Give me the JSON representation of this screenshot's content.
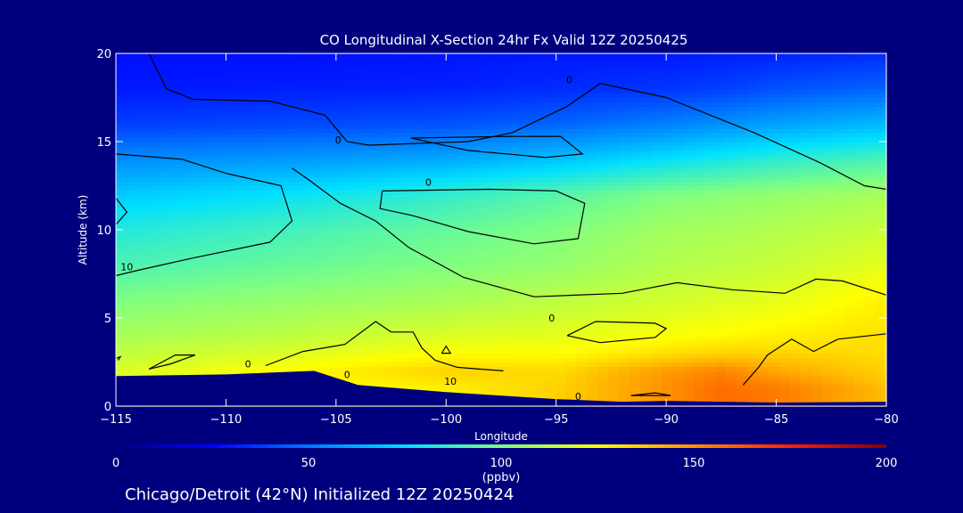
{
  "chart_data": {
    "type": "heatmap",
    "title": "CO Longitudinal X-Section 24hr  Fx Valid 12Z 20250425",
    "xlabel": "Longitude",
    "ylabel": "Altitude (km)",
    "xlim": [
      -115,
      -80
    ],
    "ylim": [
      0,
      20
    ],
    "x_ticks": [
      -115,
      -110,
      -105,
      -100,
      -95,
      -90,
      -85,
      -80
    ],
    "y_ticks": [
      0,
      5,
      10,
      15,
      20
    ],
    "x_tick_labels": [
      "−115",
      "−110",
      "−105",
      "−100",
      "−95",
      "−90",
      "−85",
      "−80"
    ],
    "y_tick_labels": [
      "0",
      "5",
      "10",
      "15",
      "20"
    ],
    "altitude_levels": [
      0,
      1,
      2,
      3,
      4,
      5,
      6,
      8,
      10,
      12,
      14,
      16,
      18,
      20
    ],
    "co_ppbv_by_level": [
      {
        "altitude": 0,
        "longitudes": [
          -115,
          -107.5,
          -100,
          -95,
          -90,
          -87.5,
          -85,
          -80
        ],
        "values": [
          120,
          124,
          128,
          135,
          150,
          158,
          155,
          140
        ]
      },
      {
        "altitude": 1,
        "longitudes": [
          -115,
          -107.5,
          -100,
          -95,
          -90,
          -87.5,
          -85,
          -80
        ],
        "values": [
          120,
          124,
          128,
          135,
          150,
          158,
          155,
          140
        ]
      },
      {
        "altitude": 2,
        "longitudes": [
          -115,
          -107.5,
          -100,
          -95,
          -90,
          -87.5,
          -85,
          -80
        ],
        "values": [
          118,
          125,
          135,
          133,
          148,
          153,
          145,
          135
        ]
      },
      {
        "altitude": 3,
        "longitudes": [
          -115,
          -107.5,
          -100,
          -95,
          -90,
          -87.5,
          -85,
          -80
        ],
        "values": [
          113,
          118,
          125,
          125,
          132,
          135,
          135,
          133
        ]
      },
      {
        "altitude": 4,
        "longitudes": [
          -115,
          -107.5,
          -100,
          -95,
          -90,
          -87.5,
          -85,
          -80
        ],
        "values": [
          108,
          112,
          118,
          120,
          124,
          126,
          128,
          132
        ]
      },
      {
        "altitude": 5,
        "longitudes": [
          -115,
          -107.5,
          -100,
          -95,
          -90,
          -87.5,
          -85,
          -80
        ],
        "values": [
          104,
          108,
          113,
          116,
          120,
          122,
          124,
          130
        ]
      },
      {
        "altitude": 6,
        "longitudes": [
          -115,
          -107.5,
          -100,
          -95,
          -90,
          -87.5,
          -85,
          -80
        ],
        "values": [
          100,
          104,
          108,
          112,
          116,
          118,
          120,
          128
        ]
      },
      {
        "altitude": 8,
        "longitudes": [
          -115,
          -107.5,
          -100,
          -95,
          -90,
          -87.5,
          -85,
          -80
        ],
        "values": [
          90,
          95,
          100,
          104,
          110,
          112,
          114,
          120
        ]
      },
      {
        "altitude": 10,
        "longitudes": [
          -115,
          -107.5,
          -100,
          -95,
          -90,
          -87.5,
          -85,
          -80
        ],
        "values": [
          82,
          88,
          95,
          100,
          107,
          108,
          110,
          114
        ]
      },
      {
        "altitude": 12,
        "longitudes": [
          -115,
          -107.5,
          -100,
          -95,
          -90,
          -87.5,
          -85,
          -80
        ],
        "values": [
          70,
          76,
          85,
          92,
          100,
          102,
          104,
          108
        ]
      },
      {
        "altitude": 14,
        "longitudes": [
          -115,
          -107.5,
          -100,
          -95,
          -90,
          -87.5,
          -85,
          -80
        ],
        "values": [
          55,
          58,
          62,
          68,
          76,
          80,
          84,
          90
        ]
      },
      {
        "altitude": 16,
        "longitudes": [
          -115,
          -107.5,
          -100,
          -95,
          -90,
          -87.5,
          -85,
          -80
        ],
        "values": [
          38,
          40,
          42,
          46,
          52,
          56,
          60,
          66
        ]
      },
      {
        "altitude": 18,
        "longitudes": [
          -115,
          -107.5,
          -100,
          -95,
          -90,
          -87.5,
          -85,
          -80
        ],
        "values": [
          30,
          31,
          32,
          34,
          36,
          38,
          42,
          46
        ]
      },
      {
        "altitude": 20,
        "longitudes": [
          -115,
          -107.5,
          -100,
          -95,
          -90,
          -87.5,
          -85,
          -80
        ],
        "values": [
          28,
          28,
          29,
          30,
          30,
          31,
          32,
          34
        ]
      }
    ],
    "terrain": {
      "longitude": [
        -115,
        -110,
        -106,
        -104,
        -100,
        -95,
        -92,
        -90,
        -85,
        -80
      ],
      "altitude_km": [
        1.7,
        1.8,
        2.0,
        1.2,
        0.8,
        0.4,
        0.25,
        0.3,
        0.2,
        0.25
      ]
    },
    "contour_labels": [
      {
        "text": "0",
        "lon": -94.4,
        "alt": 18.3
      },
      {
        "text": "0",
        "lon": -104.9,
        "alt": 14.9
      },
      {
        "text": "0",
        "lon": -100.8,
        "alt": 12.5
      },
      {
        "text": "10",
        "lon": -114.5,
        "alt": 7.7
      },
      {
        "text": "0",
        "lon": -95.2,
        "alt": 4.8
      },
      {
        "text": "10",
        "lon": -99.8,
        "alt": 1.2
      },
      {
        "text": "0",
        "lon": -109.0,
        "alt": 2.2
      },
      {
        "text": "0",
        "lon": -104.5,
        "alt": 1.6
      },
      {
        "text": "0",
        "lon": -94.0,
        "alt": 0.35
      }
    ],
    "colorbar": {
      "min": 0,
      "max": 200,
      "ticks": [
        0,
        50,
        100,
        150,
        200
      ],
      "tick_labels": [
        "0",
        "50",
        "100",
        "150",
        "200"
      ],
      "units": "(ppbv)"
    }
  },
  "footer": "Chicago/Detroit (42°N) Initialized 12Z 20250424",
  "colors": {
    "background": "#00007f",
    "text": "#ffffff",
    "terrain": "#00007f",
    "contour": "#000000"
  }
}
